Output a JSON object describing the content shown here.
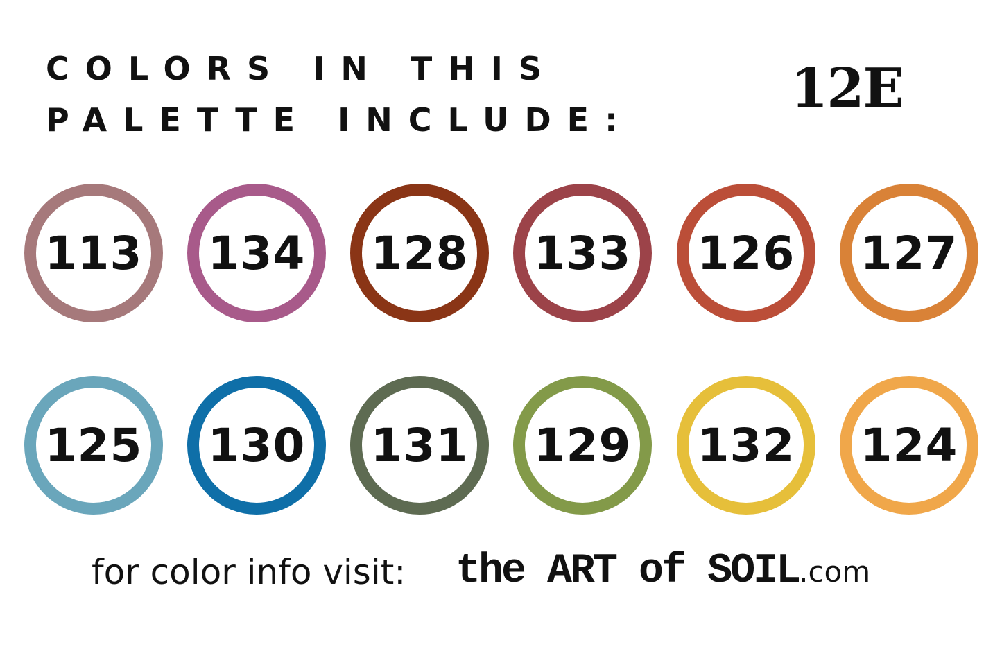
{
  "header": {
    "title_line1": "Colors in this",
    "title_line2": "palette include:",
    "palette_code": "12E"
  },
  "colors": [
    {
      "number": "113",
      "color": "#a6797b"
    },
    {
      "number": "134",
      "color": "#a85a8a"
    },
    {
      "number": "128",
      "color": "#8a3516"
    },
    {
      "number": "133",
      "color": "#9c4349"
    },
    {
      "number": "126",
      "color": "#bb4e38"
    },
    {
      "number": "127",
      "color": "#d98237"
    },
    {
      "number": "125",
      "color": "#6aa6bb"
    },
    {
      "number": "130",
      "color": "#0f6fa8"
    },
    {
      "number": "131",
      "color": "#5e6b52"
    },
    {
      "number": "129",
      "color": "#839a49"
    },
    {
      "number": "132",
      "color": "#e6bf3a"
    },
    {
      "number": "124",
      "color": "#f0a74a"
    }
  ],
  "footer": {
    "prompt": "for color info visit:",
    "brand": "the ART of SOIL",
    "domain_suffix": ".com"
  }
}
